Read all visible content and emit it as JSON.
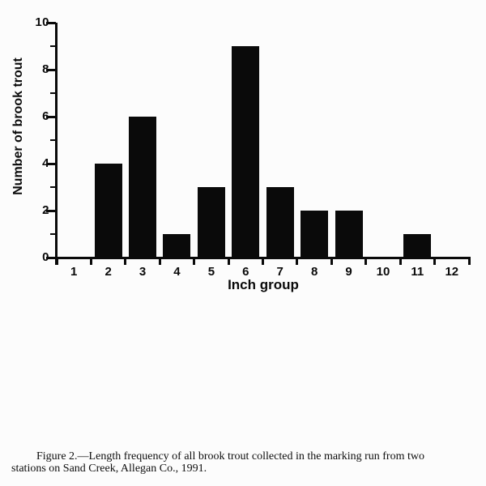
{
  "figure": {
    "background": "#fcfcfc",
    "ink": "#0a0a0a"
  },
  "chart_data": {
    "type": "bar",
    "title": "",
    "categories": [
      "1",
      "2",
      "3",
      "4",
      "5",
      "6",
      "7",
      "8",
      "9",
      "10",
      "11",
      "12"
    ],
    "values": [
      0,
      4,
      6,
      1,
      3,
      9,
      3,
      2,
      2,
      0,
      1,
      0
    ],
    "xlabel": "Inch group",
    "ylabel": "Number of brook trout",
    "ylim": [
      0,
      10
    ],
    "ytick_major": [
      0,
      2,
      4,
      6,
      8,
      10
    ],
    "ytick_minor": [
      1,
      3,
      5,
      7,
      9
    ],
    "grid": false,
    "legend": false,
    "bar_color": "#0a0a0a"
  },
  "caption": {
    "lines": [
      "Figure 2.—Length frequency of all brook trout collected in the marking run from two",
      "stations on Sand Creek, Allegan Co., 1991."
    ]
  }
}
